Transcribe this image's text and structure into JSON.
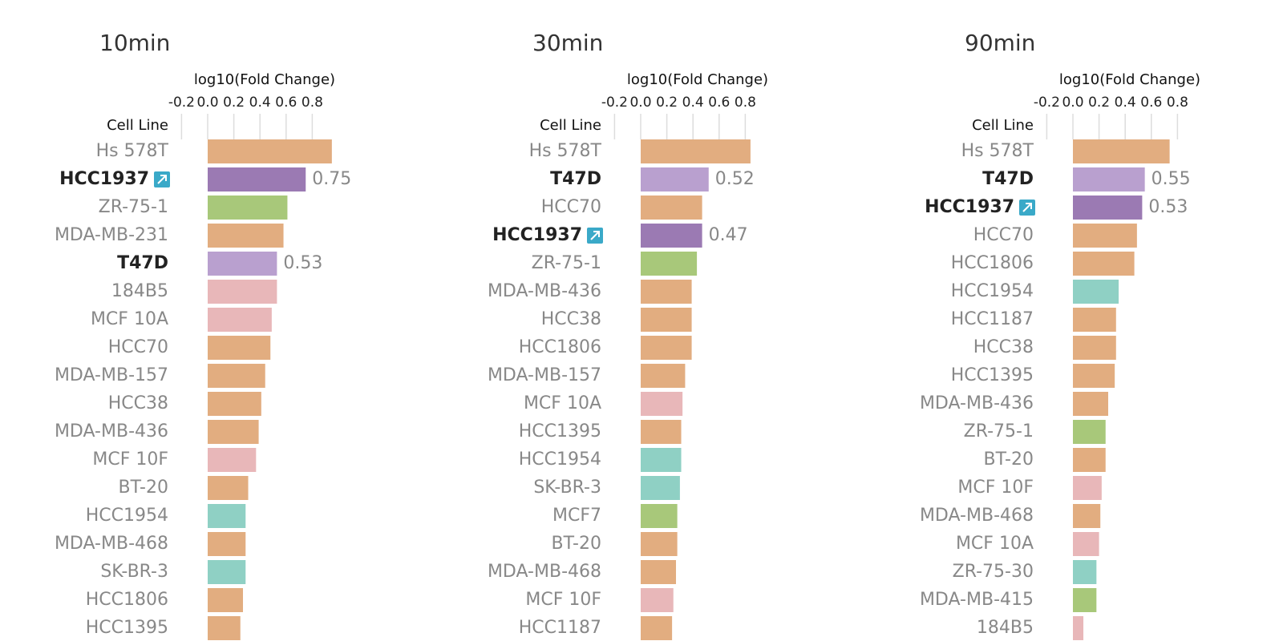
{
  "chart_data": [
    {
      "type": "bar",
      "orientation": "horizontal",
      "title": "10min",
      "x_label": "log10(Fold Change)",
      "y_label": "Cell Line",
      "xlim": [
        -0.2,
        1.0
      ],
      "xticks": [
        -0.2,
        {
          "value": 0,
          "label": "0.0"
        },
        0.2,
        0.4,
        0.6,
        0.8
      ],
      "grid": true,
      "categories": [
        "Hs 578T",
        "HCC1937",
        "ZR-75-1",
        "MDA-MB-231",
        "T47D",
        "184B5",
        "MCF 10A",
        "HCC70",
        "MDA-MB-157",
        "HCC38",
        "MDA-MB-436",
        "MCF 10F",
        "BT-20",
        "HCC1954",
        "MDA-MB-468",
        "SK-BR-3",
        "HCC1806",
        "HCC1395"
      ],
      "values": [
        0.95,
        0.75,
        0.61,
        0.58,
        0.53,
        0.53,
        0.49,
        0.48,
        0.44,
        0.41,
        0.39,
        0.37,
        0.31,
        0.29,
        0.29,
        0.29,
        0.27,
        0.25
      ],
      "colors": [
        "#e2ad80",
        "#9b7ab3",
        "#a8c87a",
        "#e2ad80",
        "#b9a0cf",
        "#e8b7b9",
        "#e8b7b9",
        "#e2ad80",
        "#e2ad80",
        "#e2ad80",
        "#e2ad80",
        "#e8b7b9",
        "#e2ad80",
        "#8fd0c4",
        "#e2ad80",
        "#8fd0c4",
        "#e2ad80",
        "#e2ad80"
      ],
      "highlight": [
        false,
        true,
        false,
        false,
        true,
        false,
        false,
        false,
        false,
        false,
        false,
        false,
        false,
        false,
        false,
        false,
        false,
        false
      ],
      "icon": [
        false,
        true,
        false,
        false,
        false,
        false,
        false,
        false,
        false,
        false,
        false,
        false,
        false,
        false,
        false,
        false,
        false,
        false
      ]
    },
    {
      "type": "bar",
      "orientation": "horizontal",
      "title": "30min",
      "x_label": "log10(Fold Change)",
      "y_label": "Cell Line",
      "xlim": [
        -0.2,
        1.0
      ],
      "xticks": [
        -0.2,
        {
          "value": 0,
          "label": "0.0"
        },
        0.2,
        0.4,
        0.6,
        0.8
      ],
      "grid": true,
      "categories": [
        "Hs 578T",
        "T47D",
        "HCC70",
        "HCC1937",
        "ZR-75-1",
        "MDA-MB-436",
        "HCC38",
        "HCC1806",
        "MDA-MB-157",
        "MCF 10A",
        "HCC1395",
        "HCC1954",
        "SK-BR-3",
        "MCF7",
        "BT-20",
        "MDA-MB-468",
        "MCF 10F",
        "HCC1187"
      ],
      "values": [
        0.84,
        0.52,
        0.47,
        0.47,
        0.43,
        0.39,
        0.39,
        0.39,
        0.34,
        0.32,
        0.31,
        0.31,
        0.3,
        0.28,
        0.28,
        0.27,
        0.25,
        0.24
      ],
      "colors": [
        "#e2ad80",
        "#b9a0cf",
        "#e2ad80",
        "#9b7ab3",
        "#a8c87a",
        "#e2ad80",
        "#e2ad80",
        "#e2ad80",
        "#e2ad80",
        "#e8b7b9",
        "#e2ad80",
        "#8fd0c4",
        "#8fd0c4",
        "#a8c87a",
        "#e2ad80",
        "#e2ad80",
        "#e8b7b9",
        "#e2ad80"
      ],
      "highlight": [
        false,
        true,
        false,
        true,
        false,
        false,
        false,
        false,
        false,
        false,
        false,
        false,
        false,
        false,
        false,
        false,
        false,
        false
      ],
      "icon": [
        false,
        false,
        false,
        true,
        false,
        false,
        false,
        false,
        false,
        false,
        false,
        false,
        false,
        false,
        false,
        false,
        false,
        false
      ]
    },
    {
      "type": "bar",
      "orientation": "horizontal",
      "title": "90min",
      "x_label": "log10(Fold Change)",
      "y_label": "Cell Line",
      "xlim": [
        -0.2,
        1.0
      ],
      "xticks": [
        -0.2,
        {
          "value": 0,
          "label": "0.0"
        },
        0.2,
        0.4,
        0.6,
        0.8
      ],
      "grid": true,
      "categories": [
        "Hs 578T",
        "T47D",
        "HCC1937",
        "HCC70",
        "HCC1806",
        "HCC1954",
        "HCC1187",
        "HCC38",
        "HCC1395",
        "MDA-MB-436",
        "ZR-75-1",
        "BT-20",
        "MCF 10F",
        "MDA-MB-468",
        "MCF 10A",
        "ZR-75-30",
        "MDA-MB-415",
        "184B5"
      ],
      "values": [
        0.74,
        0.55,
        0.53,
        0.49,
        0.47,
        0.35,
        0.33,
        0.33,
        0.32,
        0.27,
        0.25,
        0.25,
        0.22,
        0.21,
        0.2,
        0.18,
        0.18,
        0.08
      ],
      "colors": [
        "#e2ad80",
        "#b9a0cf",
        "#9b7ab3",
        "#e2ad80",
        "#e2ad80",
        "#8fd0c4",
        "#e2ad80",
        "#e2ad80",
        "#e2ad80",
        "#e2ad80",
        "#a8c87a",
        "#e2ad80",
        "#e8b7b9",
        "#e2ad80",
        "#e8b7b9",
        "#8fd0c4",
        "#a8c87a",
        "#e8b7b9"
      ],
      "highlight": [
        false,
        true,
        true,
        false,
        false,
        false,
        false,
        false,
        false,
        false,
        false,
        false,
        false,
        false,
        false,
        false,
        false,
        false
      ],
      "icon": [
        false,
        false,
        true,
        false,
        false,
        false,
        false,
        false,
        false,
        false,
        false,
        false,
        false,
        false,
        false,
        false,
        false,
        false
      ]
    }
  ]
}
